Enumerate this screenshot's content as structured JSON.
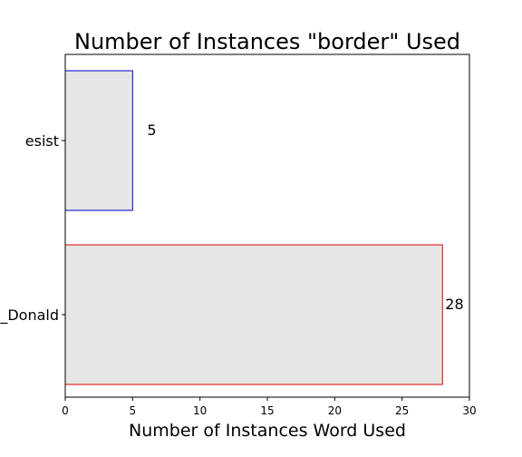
{
  "chart_data": {
    "type": "bar",
    "orientation": "horizontal",
    "title": "Number of Instances \"border\" Used",
    "xlabel": "Number of Instances Word Used",
    "ylabel": "",
    "categories": [
      "esist",
      "_Donald"
    ],
    "values": [
      5,
      28
    ],
    "data_labels": [
      "5",
      "28"
    ],
    "xlim": [
      0,
      30
    ],
    "xticks": [
      0,
      5,
      10,
      15,
      20,
      25,
      30
    ],
    "grid": false,
    "legend": "none",
    "bar_fill": "#e6e6e6",
    "bar_edge_colors": [
      "#0000cc",
      "#dd0000"
    ]
  }
}
